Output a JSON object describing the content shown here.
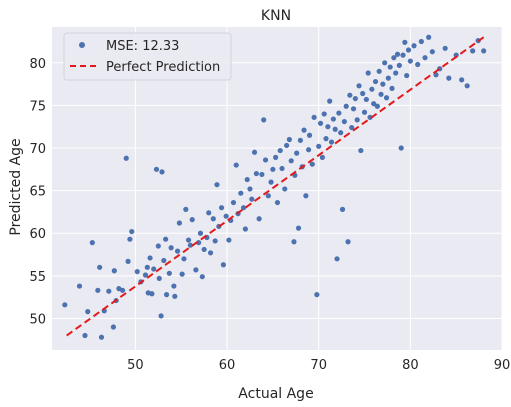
{
  "chart_data": {
    "type": "scatter",
    "title": "KNN",
    "xlabel": "Actual Age",
    "ylabel": "Predicted Age",
    "xlim": [
      40.9,
      90
    ],
    "ylim": [
      46.3,
      84.2
    ],
    "xticks": [
      50,
      60,
      70,
      80,
      90
    ],
    "yticks": [
      50,
      55,
      60,
      65,
      70,
      75,
      80
    ],
    "grid": true,
    "legend_position": "top-left",
    "colors": {
      "points": "#4c72b0",
      "line": "#e31a1c",
      "background": "#eaeaf2",
      "grid": "#ffffff"
    },
    "series": [
      {
        "name": "MSE: 12.33",
        "kind": "scatter",
        "points": [
          [
            42.3,
            51.6
          ],
          [
            43.9,
            53.8
          ],
          [
            44.5,
            48.0
          ],
          [
            44.8,
            50.8
          ],
          [
            45.3,
            58.9
          ],
          [
            45.9,
            53.3
          ],
          [
            46.1,
            56.0
          ],
          [
            46.3,
            47.8
          ],
          [
            46.6,
            50.9
          ],
          [
            47.1,
            53.2
          ],
          [
            47.6,
            49.0
          ],
          [
            47.7,
            55.6
          ],
          [
            47.9,
            52.1
          ],
          [
            48.2,
            53.5
          ],
          [
            48.6,
            53.3
          ],
          [
            49.0,
            68.8
          ],
          [
            49.2,
            56.7
          ],
          [
            49.4,
            59.3
          ],
          [
            49.6,
            60.2
          ],
          [
            50.2,
            55.5
          ],
          [
            50.6,
            54.3
          ],
          [
            51.1,
            55.1
          ],
          [
            51.3,
            56.0
          ],
          [
            51.4,
            53.0
          ],
          [
            51.6,
            57.1
          ],
          [
            51.8,
            52.9
          ],
          [
            52.0,
            55.8
          ],
          [
            52.3,
            67.5
          ],
          [
            52.5,
            58.5
          ],
          [
            52.6,
            54.7
          ],
          [
            52.8,
            50.3
          ],
          [
            52.9,
            67.2
          ],
          [
            53.1,
            56.8
          ],
          [
            53.3,
            59.3
          ],
          [
            53.4,
            52.8
          ],
          [
            53.7,
            55.3
          ],
          [
            53.9,
            58.3
          ],
          [
            54.2,
            53.8
          ],
          [
            54.3,
            52.6
          ],
          [
            54.6,
            57.9
          ],
          [
            54.8,
            61.2
          ],
          [
            55.1,
            55.2
          ],
          [
            55.3,
            57.0
          ],
          [
            55.5,
            62.8
          ],
          [
            55.8,
            59.2
          ],
          [
            56.0,
            58.6
          ],
          [
            56.2,
            61.6
          ],
          [
            56.6,
            55.7
          ],
          [
            56.9,
            58.9
          ],
          [
            57.1,
            60.0
          ],
          [
            57.3,
            54.9
          ],
          [
            57.5,
            58.1
          ],
          [
            57.8,
            59.5
          ],
          [
            58.0,
            62.4
          ],
          [
            58.2,
            57.7
          ],
          [
            58.5,
            61.7
          ],
          [
            58.7,
            59.1
          ],
          [
            58.9,
            65.7
          ],
          [
            59.1,
            60.8
          ],
          [
            59.4,
            63.0
          ],
          [
            59.6,
            56.3
          ],
          [
            59.9,
            62.0
          ],
          [
            60.2,
            59.2
          ],
          [
            60.4,
            61.5
          ],
          [
            60.7,
            63.6
          ],
          [
            61.0,
            68.0
          ],
          [
            61.2,
            62.3
          ],
          [
            61.5,
            64.7
          ],
          [
            61.8,
            63.0
          ],
          [
            62.0,
            60.5
          ],
          [
            62.2,
            66.3
          ],
          [
            62.5,
            65.2
          ],
          [
            62.7,
            64.0
          ],
          [
            63.0,
            69.5
          ],
          [
            63.2,
            67.0
          ],
          [
            63.5,
            61.7
          ],
          [
            63.8,
            66.9
          ],
          [
            64.0,
            73.3
          ],
          [
            64.2,
            68.6
          ],
          [
            64.5,
            64.4
          ],
          [
            64.8,
            66.0
          ],
          [
            65.0,
            67.5
          ],
          [
            65.3,
            68.9
          ],
          [
            65.5,
            63.6
          ],
          [
            65.8,
            69.7
          ],
          [
            66.0,
            67.6
          ],
          [
            66.3,
            65.2
          ],
          [
            66.5,
            70.3
          ],
          [
            66.8,
            71.0
          ],
          [
            67.0,
            68.5
          ],
          [
            67.3,
            59.0
          ],
          [
            67.4,
            66.8
          ],
          [
            67.6,
            69.4
          ],
          [
            67.8,
            60.6
          ],
          [
            68.0,
            70.9
          ],
          [
            68.2,
            67.8
          ],
          [
            68.4,
            72.1
          ],
          [
            68.6,
            64.4
          ],
          [
            68.9,
            69.8
          ],
          [
            69.0,
            71.5
          ],
          [
            69.3,
            68.1
          ],
          [
            69.5,
            73.6
          ],
          [
            69.8,
            52.8
          ],
          [
            70.0,
            70.2
          ],
          [
            70.2,
            72.9
          ],
          [
            70.4,
            68.9
          ],
          [
            70.6,
            74.0
          ],
          [
            70.8,
            71.1
          ],
          [
            71.0,
            72.5
          ],
          [
            71.2,
            75.5
          ],
          [
            71.4,
            70.7
          ],
          [
            71.6,
            73.4
          ],
          [
            71.8,
            72.2
          ],
          [
            72.0,
            57.0
          ],
          [
            72.2,
            74.1
          ],
          [
            72.4,
            71.8
          ],
          [
            72.6,
            62.8
          ],
          [
            72.8,
            73.1
          ],
          [
            73.0,
            74.9
          ],
          [
            73.2,
            59.0
          ],
          [
            73.4,
            76.2
          ],
          [
            73.6,
            72.4
          ],
          [
            73.8,
            74.6
          ],
          [
            74.0,
            75.8
          ],
          [
            74.2,
            73.3
          ],
          [
            74.4,
            77.3
          ],
          [
            74.6,
            69.7
          ],
          [
            74.8,
            76.4
          ],
          [
            75.0,
            74.2
          ],
          [
            75.2,
            75.7
          ],
          [
            75.4,
            78.8
          ],
          [
            75.6,
            73.6
          ],
          [
            75.8,
            76.9
          ],
          [
            76.0,
            75.2
          ],
          [
            76.2,
            77.8
          ],
          [
            76.4,
            74.9
          ],
          [
            76.6,
            79.0
          ],
          [
            76.8,
            76.3
          ],
          [
            77.0,
            77.5
          ],
          [
            77.2,
            80.0
          ],
          [
            77.4,
            75.9
          ],
          [
            77.6,
            78.2
          ],
          [
            77.8,
            79.5
          ],
          [
            78.0,
            77.0
          ],
          [
            78.2,
            80.6
          ],
          [
            78.4,
            78.8
          ],
          [
            78.6,
            81.0
          ],
          [
            78.8,
            79.7
          ],
          [
            79.0,
            70.0
          ],
          [
            79.2,
            80.9
          ],
          [
            79.4,
            82.4
          ],
          [
            79.6,
            78.5
          ],
          [
            79.8,
            81.5
          ],
          [
            80.0,
            80.2
          ],
          [
            80.4,
            82.0
          ],
          [
            80.8,
            79.8
          ],
          [
            81.2,
            82.5
          ],
          [
            81.6,
            80.6
          ],
          [
            82.0,
            83.0
          ],
          [
            82.4,
            81.3
          ],
          [
            82.8,
            78.6
          ],
          [
            83.2,
            79.3
          ],
          [
            83.8,
            81.7
          ],
          [
            84.2,
            78.2
          ],
          [
            85.0,
            80.9
          ],
          [
            85.6,
            78.0
          ],
          [
            86.2,
            77.3
          ],
          [
            86.8,
            81.4
          ],
          [
            87.4,
            82.6
          ],
          [
            88.0,
            81.4
          ]
        ]
      },
      {
        "name": "Perfect Prediction",
        "kind": "line",
        "x": [
          42.5,
          88.0
        ],
        "y": [
          48.0,
          83.0
        ]
      }
    ]
  }
}
